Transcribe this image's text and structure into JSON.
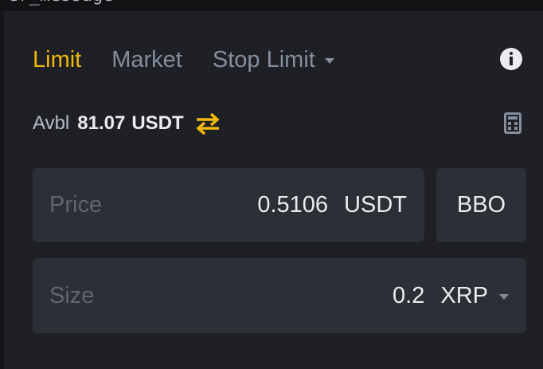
{
  "top_bar": {
    "text": "er_message"
  },
  "tabs": [
    {
      "label": "Limit",
      "active": true
    },
    {
      "label": "Market",
      "active": false
    },
    {
      "label": "Stop Limit",
      "active": false,
      "has_dropdown": true
    }
  ],
  "info_icon": "info-circle-icon",
  "available": {
    "label": "Avbl",
    "value": "81.07",
    "unit": "USDT",
    "transfer_icon": "transfer-arrows-icon"
  },
  "calculator_icon": "calculator-icon",
  "price": {
    "label": "Price",
    "value": "0.5106",
    "unit": "USDT"
  },
  "bbo_button": {
    "label": "BBO"
  },
  "size": {
    "label": "Size",
    "value": "0.2",
    "unit": "XRP",
    "has_dropdown": true
  },
  "colors": {
    "background": "#1e2026",
    "field_background": "#2b2f36",
    "accent": "#f0b90b",
    "text_primary": "#eaecef",
    "text_secondary": "#848e9c",
    "text_placeholder": "#5e6673"
  }
}
